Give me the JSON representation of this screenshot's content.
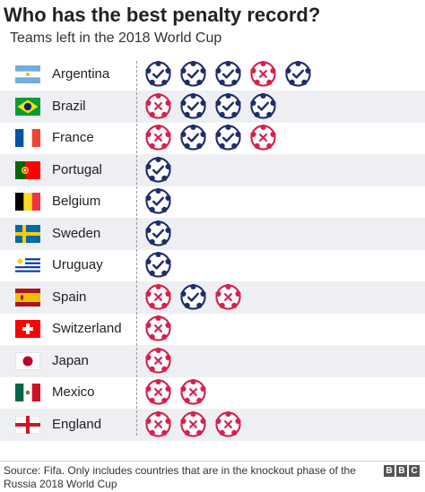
{
  "header": {
    "title": "Who has the best penalty record?",
    "subtitle": "Teams left in the 2018 World Cup"
  },
  "colors": {
    "scored": "#1f2d6a",
    "missed": "#d6214c",
    "row_shade": "#eeeff2"
  },
  "icons": {
    "scored": "check-ball-icon",
    "missed": "cross-ball-icon"
  },
  "chart_data": {
    "type": "table",
    "title": "Who has the best penalty record?",
    "subtitle": "Teams left in the 2018 World Cup",
    "legend": {
      "scored": "scored",
      "missed": "missed"
    },
    "rows": [
      {
        "team": "Argentina",
        "flag": "argentina",
        "results": [
          "scored",
          "scored",
          "scored",
          "missed",
          "scored"
        ]
      },
      {
        "team": "Brazil",
        "flag": "brazil",
        "results": [
          "missed",
          "scored",
          "scored",
          "scored"
        ]
      },
      {
        "team": "France",
        "flag": "france",
        "results": [
          "missed",
          "scored",
          "scored",
          "missed"
        ]
      },
      {
        "team": "Portugal",
        "flag": "portugal",
        "results": [
          "scored"
        ]
      },
      {
        "team": "Belgium",
        "flag": "belgium",
        "results": [
          "scored"
        ]
      },
      {
        "team": "Sweden",
        "flag": "sweden",
        "results": [
          "scored"
        ]
      },
      {
        "team": "Uruguay",
        "flag": "uruguay",
        "results": [
          "scored"
        ]
      },
      {
        "team": "Spain",
        "flag": "spain",
        "results": [
          "missed",
          "scored",
          "missed"
        ]
      },
      {
        "team": "Switzerland",
        "flag": "switzerland",
        "results": [
          "missed"
        ]
      },
      {
        "team": "Japan",
        "flag": "japan",
        "results": [
          "missed"
        ]
      },
      {
        "team": "Mexico",
        "flag": "mexico",
        "results": [
          "missed",
          "missed"
        ]
      },
      {
        "team": "England",
        "flag": "england",
        "results": [
          "missed",
          "missed",
          "missed"
        ]
      }
    ]
  },
  "footer": {
    "source": "Source: Fifa. Only includes countries that are in the knockout phase of the Russia 2018 World Cup",
    "logo": [
      "B",
      "B",
      "C"
    ]
  }
}
